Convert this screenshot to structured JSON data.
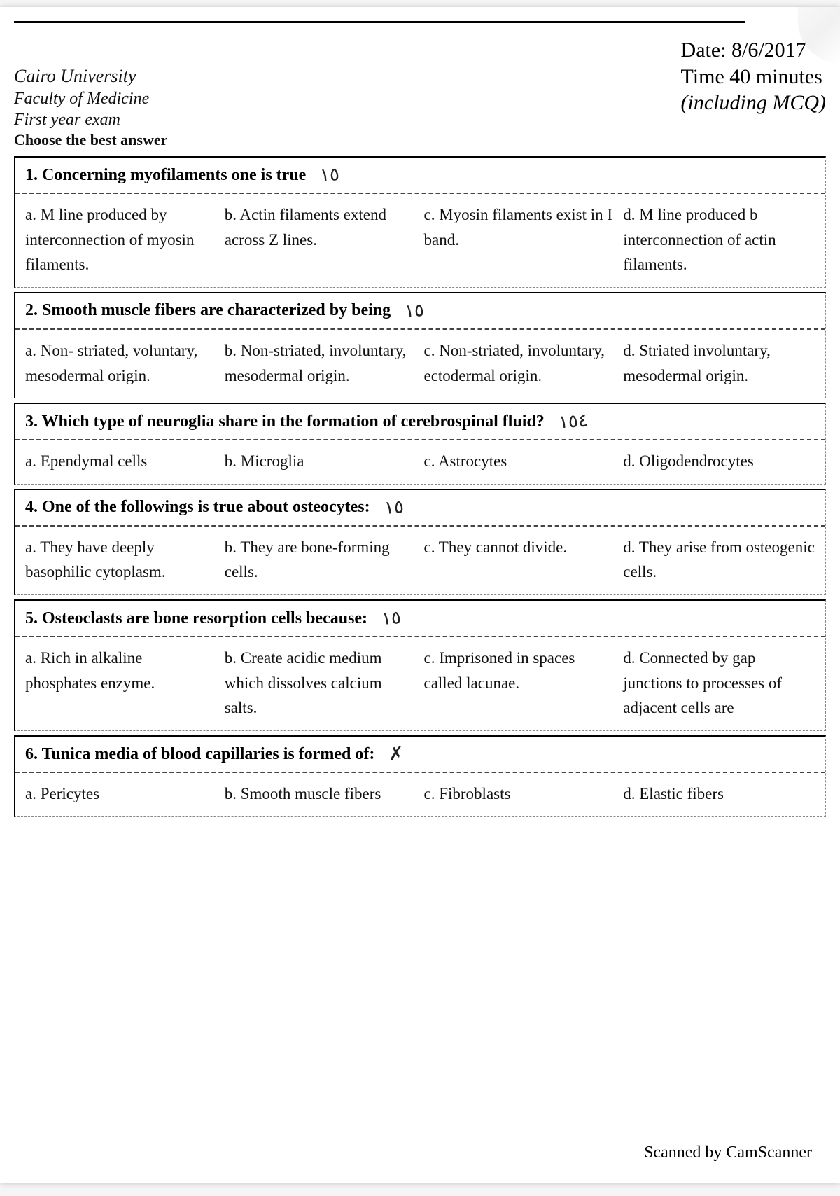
{
  "header": {
    "left1": "Cairo University",
    "left2": "Faculty of Medicine",
    "left3": "First year exam",
    "left4": "Choose the best answer",
    "right1": "Date: 8/6/2017",
    "right2": "Time 40 minutes",
    "right3": "(including MCQ)"
  },
  "q1": {
    "title": "1. Concerning myofilaments one is true",
    "annot": "١٥",
    "a": "a. M line produced by interconnection of myosin filaments.",
    "b": "b. Actin filaments extend across Z lines.",
    "c": "c. Myosin filaments exist in I band.",
    "d": "d. M line produced b interconnection of actin filaments."
  },
  "q2": {
    "title": "2. Smooth muscle fibers are characterized by being",
    "annot": "١٥",
    "a": "a. Non- striated, voluntary, mesodermal origin.",
    "b": "b. Non-striated, involuntary, mesodermal origin.",
    "c": "c. Non-striated, involuntary, ectodermal origin.",
    "d": "d. Striated involuntary, mesodermal origin."
  },
  "q3": {
    "title": "3. Which type of neuroglia share in the formation of cerebrospinal fluid?",
    "annot": "١٥٤",
    "a": "a. Ependymal cells",
    "b": "b. Microglia",
    "c": "c. Astrocytes",
    "d": "d. Oligodendrocytes"
  },
  "q4": {
    "title": "4. One of the followings is true about osteocytes:",
    "annot": "١٥",
    "a": "a. They have deeply basophilic cytoplasm.",
    "b": "b. They are bone-forming cells.",
    "c": "c. They cannot divide.",
    "d": "d. They arise from osteogenic cells."
  },
  "q5": {
    "title": "5. Osteoclasts are bone resorption cells because:",
    "annot": "١٥",
    "a": "a. Rich in alkaline phosphates enzyme.",
    "b": "b. Create acidic medium which dissolves calcium salts.",
    "c": "c. Imprisoned in spaces called lacunae.",
    "d": "d. Connected by gap junctions to processes of adjacent cells are"
  },
  "q6": {
    "title": "6. Tunica media of blood capillaries is formed of:",
    "annot": "✗",
    "a": "a. Pericytes",
    "b": "b. Smooth muscle fibers",
    "c": "c. Fibroblasts",
    "d": "d. Elastic fibers"
  },
  "footer": "Scanned by CamScanner",
  "style": {
    "page_bg": "#ffffff",
    "text_color": "#111111",
    "border_color": "#000000",
    "dashed_color": "#444444",
    "font_family": "Georgia, Times New Roman, serif",
    "title_fontsize": 24,
    "body_fontsize": 23,
    "header_right_fontsize": 30
  }
}
